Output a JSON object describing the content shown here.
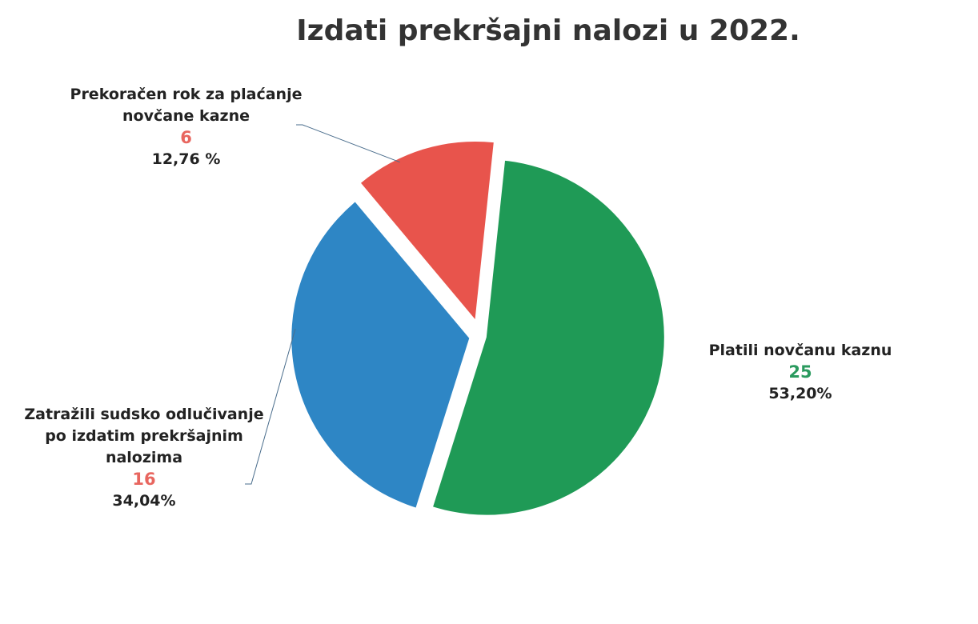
{
  "chart_data": {
    "type": "pie",
    "title": "Izdati prekršajni nalozi u 2022.",
    "categories": [
      "Platili novčanu kaznu",
      "Zatražili sudsko odlučivanje po izdatim prekršajnim nalozima",
      "Prekoračen rok za plaćanje novčane kazne"
    ],
    "values": [
      25,
      16,
      6
    ],
    "percents": [
      53.2,
      34.04,
      12.76
    ],
    "percent_labels": [
      "53,20%",
      "34,04%",
      "12,76 %"
    ],
    "colors": [
      "#1f9a56",
      "#2e86c5",
      "#e8544c"
    ],
    "label_colors": [
      "#2a9a5e",
      "#e8665f",
      "#e8665f"
    ]
  }
}
